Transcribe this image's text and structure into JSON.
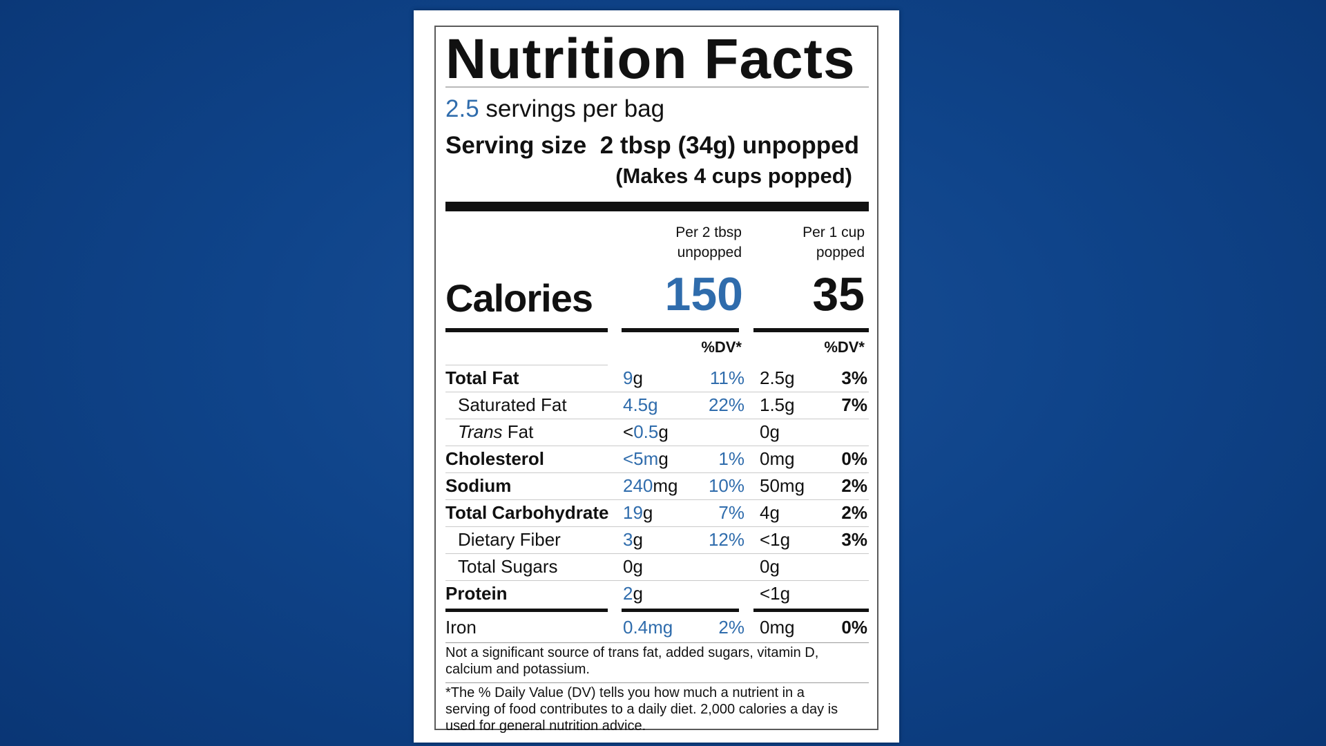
{
  "label": {
    "title": "Nutrition Facts",
    "servings": {
      "count": "2.5",
      "text": " servings per bag"
    },
    "serving_size": {
      "label": "Serving size",
      "value": "2 tbsp (34g) unpopped"
    },
    "makes": "(Makes 4 cups popped)",
    "columns": [
      {
        "heading_line1": "Per 2 tbsp",
        "heading_line2": "unpopped",
        "calories": "150"
      },
      {
        "heading_line1": "Per 1 cup",
        "heading_line2": "popped",
        "calories": "35"
      }
    ],
    "calories_label": "Calories",
    "dv_heading": "%DV*",
    "nutrients": [
      {
        "name": "Total Fat",
        "amt1_num": "9",
        "amt1_unit": "g",
        "dv1": "11%",
        "amt2": "2.5g",
        "dv2": "3%"
      },
      {
        "name": "Saturated Fat",
        "amt1_num": "4.5g",
        "amt1_unit": "",
        "dv1": "22%",
        "amt2": "1.5g",
        "dv2": "7%"
      },
      {
        "name_italic": "Trans",
        "name": " Fat",
        "amt1_prefix": "<",
        "amt1_num": "0.5",
        "amt1_unit": "g",
        "dv1": "",
        "amt2": "0g",
        "dv2": ""
      },
      {
        "name": "Cholesterol",
        "amt1_num": "<5m",
        "amt1_unit": "g",
        "dv1": "1%",
        "amt2": "0mg",
        "dv2": "0%"
      },
      {
        "name": "Sodium",
        "amt1_num": "240",
        "amt1_unit": "mg",
        "dv1": "10%",
        "amt2": "50mg",
        "dv2": "2%"
      },
      {
        "name": "Total Carbohydrate",
        "amt1_num": "19",
        "amt1_unit": "g",
        "dv1": "7%",
        "amt2": "4g",
        "dv2": "2%"
      },
      {
        "name": "Dietary Fiber",
        "amt1_num": "3",
        "amt1_unit": "g",
        "dv1": "12%",
        "amt2": "<1g",
        "dv2": "3%"
      },
      {
        "name": "Total Sugars",
        "amt1_num": "",
        "amt1_unit": "0g",
        "dv1": "",
        "amt2": "0g",
        "dv2": ""
      },
      {
        "name": "Protein",
        "amt1_num": "2",
        "amt1_unit": "g",
        "dv1": "",
        "amt2": "<1g",
        "dv2": ""
      }
    ],
    "iron": {
      "name": "Iron",
      "amt1": "0.4mg",
      "dv1": "2%",
      "amt2": "0mg",
      "dv2": "0%"
    },
    "note1": "Not a significant source of trans fat, added sugars, vitamin D, calcium and potassium.",
    "note2": "*The % Daily Value (DV) tells you how much a nutrient in a serving of food contributes to a daily diet. 2,000 calories a day is used for general nutrition advice."
  },
  "colors": {
    "background": "#0f448a",
    "accent_blue": "#2f6cac",
    "label_bg": "#ffffff",
    "text": "#111111"
  }
}
